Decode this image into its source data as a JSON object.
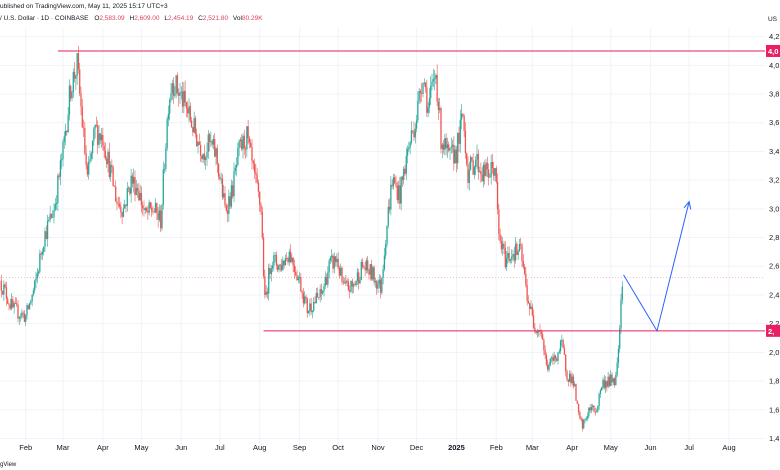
{
  "header": {
    "published": "ublished on TradingView.com, May 11, 2025 15:17 UTC+3",
    "symbol": "/ U.S. Dollar · 1D · COINBASE",
    "o_label": "O",
    "o_value": "2,583.09",
    "h_label": "H",
    "h_value": "2,609.00",
    "l_label": "L",
    "l_value": "2,454.19",
    "c_label": "C",
    "c_value": "2,521.80",
    "vol_label": "Vol",
    "vol_value": "80.29K",
    "currency": "US"
  },
  "footer": {
    "brand": "gView"
  },
  "chart_data": {
    "type": "candlestick",
    "y_ticks": [
      "1,4",
      "1,6",
      "1,8",
      "2,0",
      "2,2",
      "2,4",
      "2,6",
      "2,8",
      "3,0",
      "3,2",
      "3,4",
      "3,6",
      "3,8",
      "4,0",
      "4,2"
    ],
    "y_tick_values": [
      1400,
      1600,
      1800,
      2000,
      2200,
      2400,
      2600,
      2800,
      3000,
      3200,
      3400,
      3600,
      3800,
      4000,
      4200
    ],
    "ylim": [
      1250,
      4260
    ],
    "x_ticks": [
      "Feb",
      "Mar",
      "Apr",
      "May",
      "Jun",
      "Jul",
      "Aug",
      "Sep",
      "Oct",
      "Nov",
      "Dec",
      "2025",
      "Feb",
      "Mar",
      "Apr",
      "May",
      "Jun",
      "Jul",
      "Aug"
    ],
    "x_tick_dates": [
      "2024-02-01",
      "2024-03-01",
      "2024-04-01",
      "2024-05-01",
      "2024-06-01",
      "2024-07-01",
      "2024-08-01",
      "2024-09-01",
      "2024-10-01",
      "2024-11-01",
      "2024-12-01",
      "2025-01-01",
      "2025-02-01",
      "2025-03-01",
      "2025-04-01",
      "2025-05-01",
      "2025-06-01",
      "2025-07-01",
      "2025-08-01"
    ],
    "xlim": [
      "2024-01-12",
      "2025-08-29"
    ],
    "close_path": [
      [
        "2024-01-12",
        2500
      ],
      [
        "2024-01-22",
        2300
      ],
      [
        "2024-02-01",
        2250
      ],
      [
        "2024-02-08",
        2450
      ],
      [
        "2024-02-15",
        2800
      ],
      [
        "2024-02-23",
        3000
      ],
      [
        "2024-03-01",
        3400
      ],
      [
        "2024-03-07",
        3850
      ],
      [
        "2024-03-12",
        4000
      ],
      [
        "2024-03-16",
        3600
      ],
      [
        "2024-03-20",
        3200
      ],
      [
        "2024-03-26",
        3550
      ],
      [
        "2024-04-01",
        3500
      ],
      [
        "2024-04-06",
        3300
      ],
      [
        "2024-04-12",
        3050
      ],
      [
        "2024-04-17",
        3000
      ],
      [
        "2024-04-23",
        3200
      ],
      [
        "2024-04-28",
        3150
      ],
      [
        "2024-05-04",
        2950
      ],
      [
        "2024-05-10",
        3000
      ],
      [
        "2024-05-16",
        2920
      ],
      [
        "2024-05-22",
        3750
      ],
      [
        "2024-05-25",
        3900
      ],
      [
        "2024-06-01",
        3780
      ],
      [
        "2024-06-07",
        3650
      ],
      [
        "2024-06-13",
        3500
      ],
      [
        "2024-06-18",
        3400
      ],
      [
        "2024-06-23",
        3450
      ],
      [
        "2024-06-28",
        3380
      ],
      [
        "2024-07-05",
        3000
      ],
      [
        "2024-07-10",
        3100
      ],
      [
        "2024-07-16",
        3400
      ],
      [
        "2024-07-22",
        3500
      ],
      [
        "2024-07-27",
        3250
      ],
      [
        "2024-08-02",
        3000
      ],
      [
        "2024-08-05",
        2350
      ],
      [
        "2024-08-10",
        2650
      ],
      [
        "2024-08-17",
        2600
      ],
      [
        "2024-08-24",
        2700
      ],
      [
        "2024-09-01",
        2500
      ],
      [
        "2024-09-07",
        2300
      ],
      [
        "2024-09-12",
        2350
      ],
      [
        "2024-09-18",
        2400
      ],
      [
        "2024-09-24",
        2600
      ],
      [
        "2024-09-30",
        2650
      ],
      [
        "2024-10-05",
        2450
      ],
      [
        "2024-10-12",
        2450
      ],
      [
        "2024-10-20",
        2600
      ],
      [
        "2024-10-27",
        2550
      ],
      [
        "2024-11-03",
        2450
      ],
      [
        "2024-11-08",
        2900
      ],
      [
        "2024-11-12",
        3200
      ],
      [
        "2024-11-18",
        3100
      ],
      [
        "2024-11-24",
        3400
      ],
      [
        "2024-12-01",
        3650
      ],
      [
        "2024-12-06",
        3950
      ],
      [
        "2024-12-10",
        3700
      ],
      [
        "2024-12-16",
        3950
      ],
      [
        "2024-12-20",
        3500
      ],
      [
        "2024-12-26",
        3350
      ],
      [
        "2025-01-01",
        3400
      ],
      [
        "2025-01-06",
        3650
      ],
      [
        "2025-01-10",
        3250
      ],
      [
        "2025-01-16",
        3350
      ],
      [
        "2025-01-21",
        3250
      ],
      [
        "2025-01-27",
        3250
      ],
      [
        "2025-01-31",
        3300
      ],
      [
        "2025-02-03",
        2800
      ],
      [
        "2025-02-08",
        2650
      ],
      [
        "2025-02-14",
        2700
      ],
      [
        "2025-02-20",
        2700
      ],
      [
        "2025-02-25",
        2400
      ],
      [
        "2025-03-02",
        2200
      ],
      [
        "2025-03-08",
        2150
      ],
      [
        "2025-03-12",
        1900
      ],
      [
        "2025-03-18",
        1950
      ],
      [
        "2025-03-24",
        2050
      ],
      [
        "2025-03-28",
        1850
      ],
      [
        "2025-04-02",
        1800
      ],
      [
        "2025-04-06",
        1550
      ],
      [
        "2025-04-09",
        1480
      ],
      [
        "2025-04-14",
        1600
      ],
      [
        "2025-04-20",
        1600
      ],
      [
        "2025-04-24",
        1780
      ],
      [
        "2025-04-30",
        1800
      ],
      [
        "2025-05-05",
        1820
      ],
      [
        "2025-05-08",
        2200
      ],
      [
        "2025-05-10",
        2520
      ]
    ],
    "annotations": {
      "resistance": {
        "y": 4100,
        "x_from": "2024-02-26"
      },
      "support": {
        "y": 2150,
        "x_from": "2024-08-04"
      },
      "level_marker": 2520,
      "projection": [
        [
          "2025-05-11",
          2540
        ],
        [
          "2025-06-06",
          2150
        ],
        [
          "2025-07-01",
          3050
        ]
      ]
    },
    "axis_badges": {
      "resistance_label": "4,0",
      "support_label": "2,"
    }
  }
}
